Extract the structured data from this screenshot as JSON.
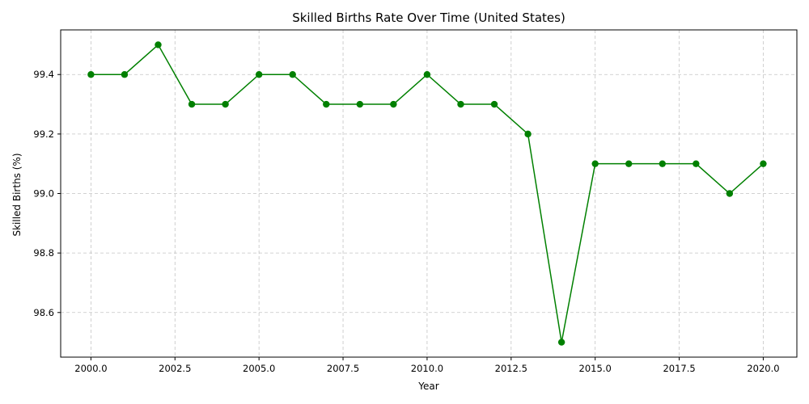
{
  "chart_data": {
    "type": "line",
    "title": "Skilled Births Rate Over Time (United States)",
    "xlabel": "Year",
    "ylabel": "Skilled Births (%)",
    "xlim": [
      1999.1,
      2021.0
    ],
    "ylim": [
      98.45,
      99.55
    ],
    "x_ticks": [
      2000.0,
      2002.5,
      2005.0,
      2007.5,
      2010.0,
      2012.5,
      2015.0,
      2017.5,
      2020.0
    ],
    "x_tick_labels": [
      "2000.0",
      "2002.5",
      "2005.0",
      "2007.5",
      "2010.0",
      "2012.5",
      "2015.0",
      "2017.5",
      "2020.0"
    ],
    "y_ticks": [
      98.6,
      98.8,
      99.0,
      99.2,
      99.4
    ],
    "y_tick_labels": [
      "98.6",
      "98.8",
      "99.0",
      "99.2",
      "99.4"
    ],
    "grid": true,
    "color": "#008000",
    "series": [
      {
        "x": [
          2000,
          2001,
          2002,
          2003,
          2004,
          2005,
          2006,
          2007,
          2008,
          2009,
          2010,
          2011,
          2012,
          2013,
          2014,
          2015,
          2016,
          2017,
          2018,
          2019,
          2020
        ],
        "values": [
          99.4,
          99.4,
          99.5,
          99.3,
          99.3,
          99.4,
          99.4,
          99.3,
          99.3,
          99.3,
          99.4,
          99.3,
          99.3,
          99.2,
          98.5,
          99.1,
          99.1,
          99.1,
          99.1,
          99.0,
          99.1
        ]
      }
    ]
  }
}
